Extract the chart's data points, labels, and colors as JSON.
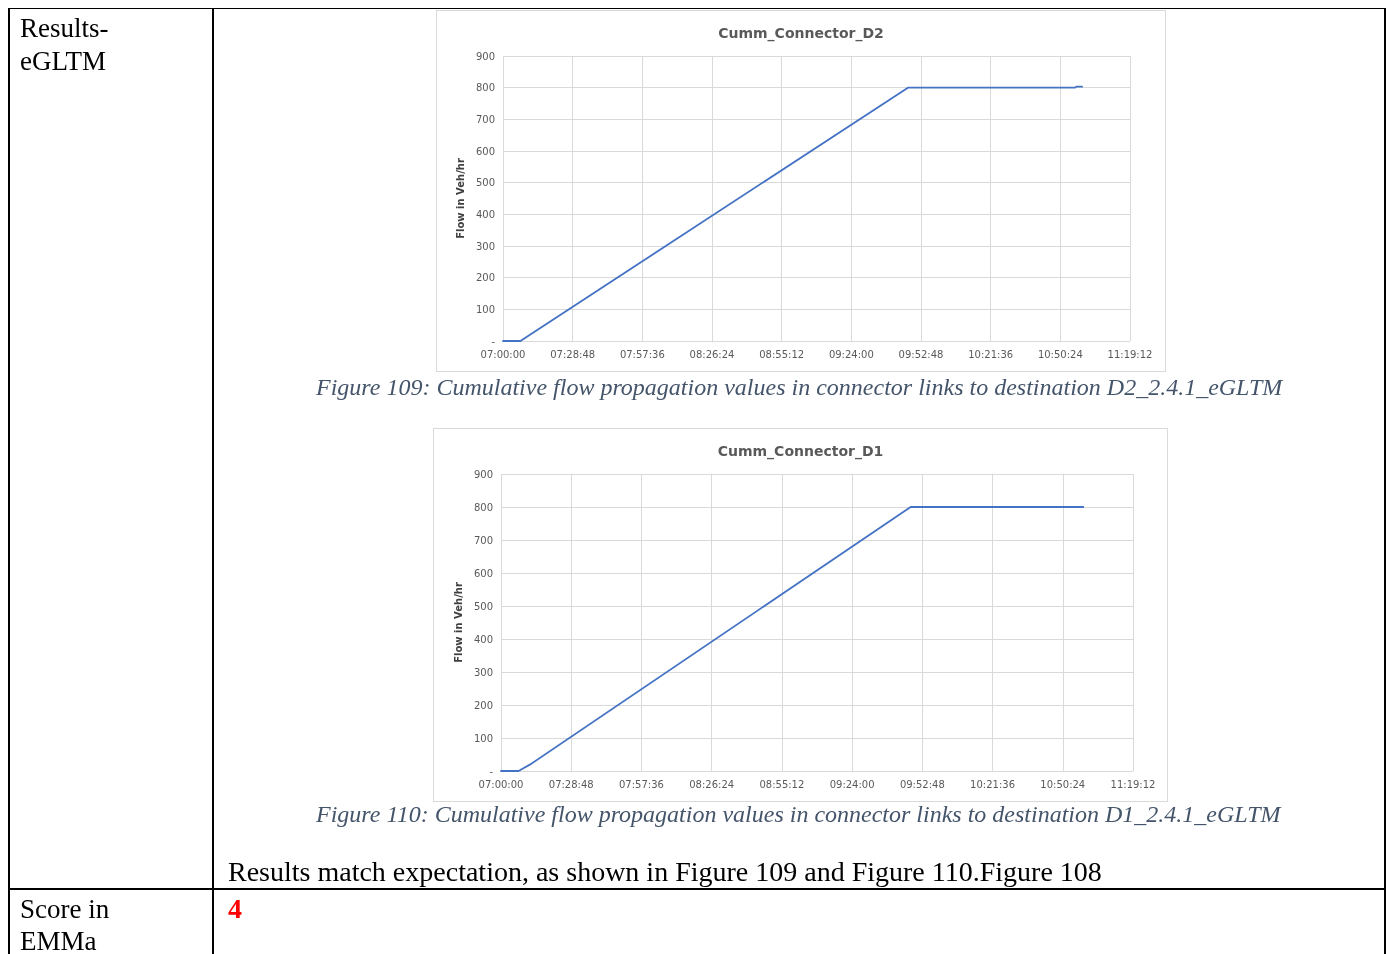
{
  "chart_data": [
    {
      "type": "line",
      "title": "Cumm_Connector_D2",
      "ylabel": "Flow in Veh/hr",
      "annotations": [
        "Figure 109: Cumulative flow propagation values in connector links to destination D2_2.4.1_eGLTM",
        "Results-\neGLTM"
      ],
      "series": [
        {
          "color": "#4472c4",
          "x": [
            7.0,
            7.12,
            9.79,
            10.94,
            10.95,
            10.99
          ],
          "values": [
            0,
            0,
            800,
            800,
            803,
            803
          ]
        }
      ],
      "grid": true,
      "marker": "none",
      "line_style": "solid",
      "xlim": [
        7.0,
        11.32
      ],
      "xticks": [
        {
          "value": 7.0,
          "label": "07:00:00"
        },
        {
          "value": 7.48,
          "label": "07:28:48"
        },
        {
          "value": 7.96,
          "label": "07:57:36"
        },
        {
          "value": 8.44,
          "label": "08:26:24"
        },
        {
          "value": 8.92,
          "label": "08:55:12"
        },
        {
          "value": 9.4,
          "label": "09:24:00"
        },
        {
          "value": 9.88,
          "label": "09:52:48"
        },
        {
          "value": 10.36,
          "label": "10:21:36"
        },
        {
          "value": 10.84,
          "label": "10:50:24"
        },
        {
          "value": 11.32,
          "label": "11:19:12"
        }
      ],
      "ylim": [
        0,
        900
      ],
      "yticks": [
        {
          "value": 0,
          "label": "-"
        },
        100,
        200,
        300,
        400,
        500,
        600,
        700,
        800,
        900
      ]
    },
    {
      "type": "line",
      "title": "Cumm_Connector_D1",
      "ylabel": "Flow in Veh/hr",
      "annotations": [
        "Figure 110: Cumulative flow propagation values in connector links to destination D1_2.4.1_eGLTM",
        "Results match expectation, as shown in Figure 109 and Figure 110.Figure 108",
        "Score in\nEMMa",
        "4"
      ],
      "series": [
        {
          "color": "#4472c4",
          "x": [
            7.0,
            7.12,
            7.2,
            9.8,
            10.98
          ],
          "values": [
            0,
            0,
            20,
            800,
            800
          ]
        }
      ],
      "grid": true,
      "marker": "none",
      "line_style": "solid",
      "xlim": [
        7.0,
        11.32
      ],
      "xticks": [
        {
          "value": 7.0,
          "label": "07:00:00"
        },
        {
          "value": 7.48,
          "label": "07:28:48"
        },
        {
          "value": 7.96,
          "label": "07:57:36"
        },
        {
          "value": 8.44,
          "label": "08:26:24"
        },
        {
          "value": 8.92,
          "label": "08:55:12"
        },
        {
          "value": 9.4,
          "label": "09:24:00"
        },
        {
          "value": 9.88,
          "label": "09:52:48"
        },
        {
          "value": 10.36,
          "label": "10:21:36"
        },
        {
          "value": 10.84,
          "label": "10:50:24"
        },
        {
          "value": 11.32,
          "label": "11:19:12"
        }
      ],
      "ylim": [
        0,
        900
      ],
      "yticks": [
        {
          "value": 0,
          "label": "-"
        },
        100,
        200,
        300,
        400,
        500,
        600,
        700,
        800,
        900
      ]
    }
  ]
}
